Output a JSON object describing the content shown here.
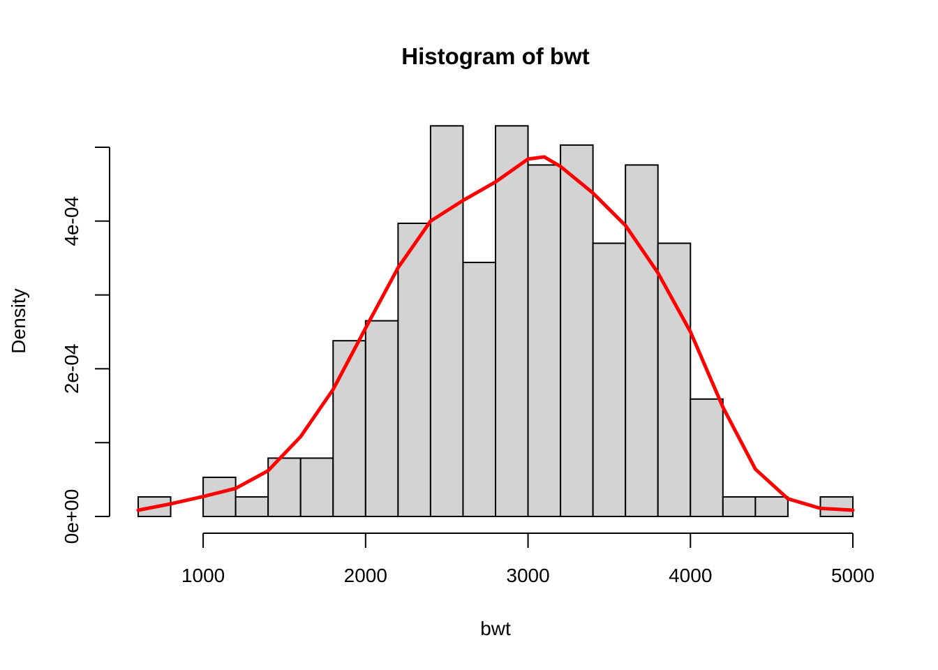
{
  "chart_data": {
    "type": "bar",
    "title": "Histogram of bwt",
    "xlabel": "bwt",
    "ylabel": "Density",
    "xlim": [
      600,
      5000
    ],
    "ylim": [
      0,
      0.0005
    ],
    "x_ticks": [
      1000,
      2000,
      3000,
      4000,
      5000
    ],
    "x_tick_labels": [
      "1000",
      "2000",
      "3000",
      "4000",
      "5000"
    ],
    "y_ticks": [
      0,
      0.0001,
      0.0002,
      0.0003,
      0.0004,
      0.0005
    ],
    "y_tick_labels": [
      "0e+00",
      "",
      "2e-04",
      "",
      "4e-04",
      ""
    ],
    "grid": false,
    "bins": [
      {
        "start": 600,
        "end": 800,
        "density": 2.65e-05
      },
      {
        "start": 800,
        "end": 1000,
        "density": 0
      },
      {
        "start": 1000,
        "end": 1200,
        "density": 5.3e-05
      },
      {
        "start": 1200,
        "end": 1400,
        "density": 2.65e-05
      },
      {
        "start": 1400,
        "end": 1600,
        "density": 7.9e-05
      },
      {
        "start": 1600,
        "end": 1800,
        "density": 7.9e-05
      },
      {
        "start": 1800,
        "end": 2000,
        "density": 0.000238
      },
      {
        "start": 2000,
        "end": 2200,
        "density": 0.000265
      },
      {
        "start": 2200,
        "end": 2400,
        "density": 0.000397
      },
      {
        "start": 2400,
        "end": 2600,
        "density": 0.000529
      },
      {
        "start": 2600,
        "end": 2800,
        "density": 0.000344
      },
      {
        "start": 2800,
        "end": 3000,
        "density": 0.000529
      },
      {
        "start": 3000,
        "end": 3200,
        "density": 0.000476
      },
      {
        "start": 3200,
        "end": 3400,
        "density": 0.000503
      },
      {
        "start": 3400,
        "end": 3600,
        "density": 0.00037
      },
      {
        "start": 3600,
        "end": 3800,
        "density": 0.000476
      },
      {
        "start": 3800,
        "end": 4000,
        "density": 0.00037
      },
      {
        "start": 4000,
        "end": 4200,
        "density": 0.000159
      },
      {
        "start": 4200,
        "end": 4400,
        "density": 2.65e-05
      },
      {
        "start": 4400,
        "end": 4600,
        "density": 2.65e-05
      },
      {
        "start": 4600,
        "end": 4800,
        "density": 0
      },
      {
        "start": 4800,
        "end": 5000,
        "density": 2.65e-05
      }
    ],
    "density_curve": {
      "x": [
        600,
        800,
        1000,
        1200,
        1400,
        1600,
        1800,
        2000,
        2200,
        2400,
        2600,
        2800,
        3000,
        3100,
        3200,
        3400,
        3600,
        3800,
        4000,
        4200,
        4400,
        4600,
        4800,
        5000
      ],
      "y": [
        8.5e-06,
        1.7e-05,
        2.7e-05,
        3.8e-05,
        6.2e-05,
        0.000108,
        0.000172,
        0.000255,
        0.000337,
        0.0004,
        0.000428,
        0.000453,
        0.000484,
        0.000487,
        0.000474,
        0.000438,
        0.000394,
        0.00033,
        0.00025,
        0.000148,
        6.4e-05,
        2.4e-05,
        1.1e-05,
        8.5e-06
      ]
    },
    "colors": {
      "bar_fill": "#d3d3d3",
      "bar_border": "#000000",
      "density_line": "#ff0000"
    }
  }
}
